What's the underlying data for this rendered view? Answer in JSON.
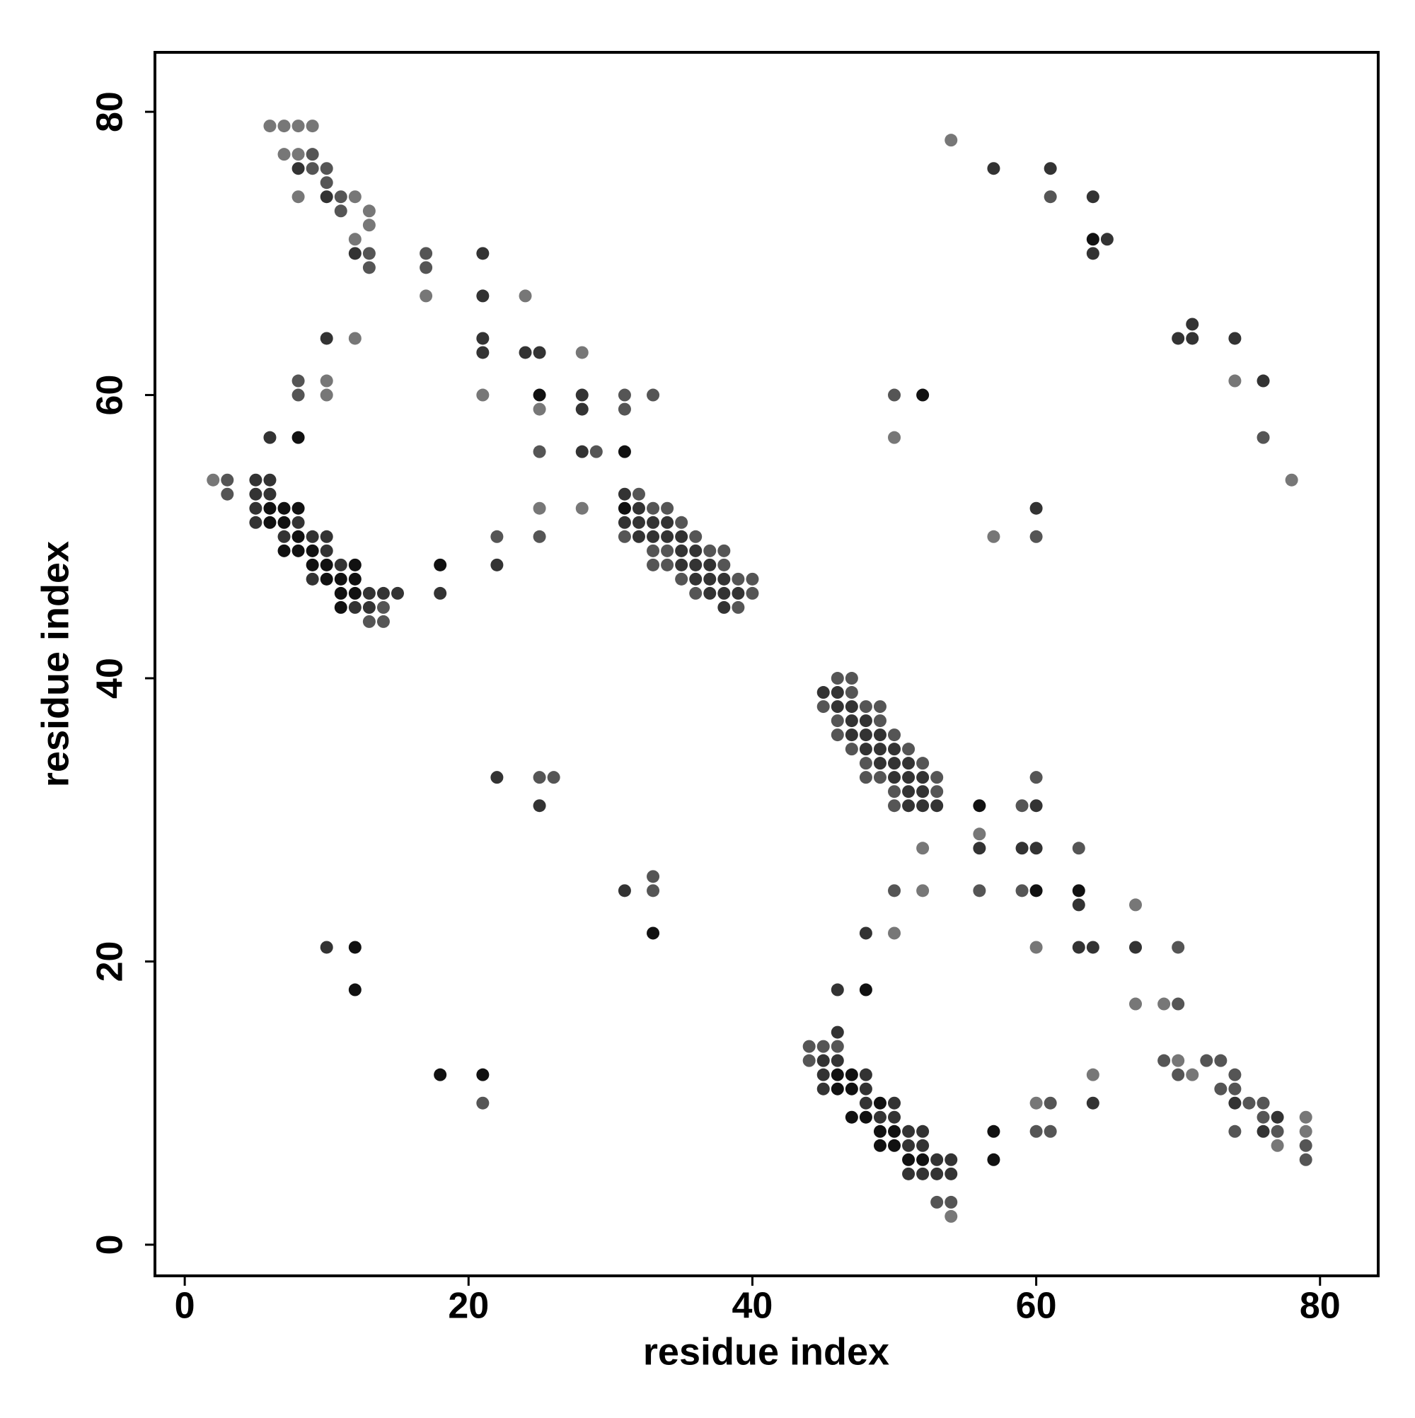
{
  "chart_data": {
    "type": "scatter",
    "xlabel": "residue index",
    "ylabel": "residue index",
    "xlim": [
      -2.1,
      84.1
    ],
    "ylim": [
      -2.2,
      84.2
    ],
    "xticks": [
      0,
      20,
      40,
      60,
      80
    ],
    "yticks": [
      0,
      20,
      40,
      60,
      80
    ],
    "grid": false,
    "series": [
      {
        "color": "#111111",
        "x": [
          25,
          52,
          8,
          31,
          18,
          64,
          56,
          60,
          63,
          33,
          12,
          12,
          48,
          18,
          21,
          57,
          57,
          31,
          6,
          7,
          8,
          6,
          7,
          8,
          7,
          8,
          9,
          9,
          10,
          12,
          10,
          11,
          12,
          11,
          12,
          11,
          46,
          47,
          46,
          47,
          49,
          47,
          48,
          49,
          50,
          49,
          50,
          51,
          52
        ],
        "values": [
          60,
          60,
          57,
          56,
          48,
          71,
          31,
          25,
          25,
          22,
          21,
          18,
          18,
          12,
          12,
          8,
          6,
          52,
          52,
          52,
          52,
          51,
          51,
          50,
          49,
          49,
          49,
          48,
          48,
          48,
          47,
          47,
          47,
          46,
          46,
          45,
          12,
          12,
          11,
          11,
          10,
          9,
          9,
          8,
          8,
          7,
          7,
          6,
          6
        ]
      },
      {
        "color": "#333333",
        "x": [
          8,
          10,
          12,
          21,
          21,
          10,
          21,
          21,
          24,
          25,
          28,
          28,
          28,
          6,
          5,
          6,
          5,
          6,
          22,
          18,
          57,
          61,
          64,
          65,
          64,
          71,
          70,
          71,
          74,
          76,
          60,
          22,
          25,
          60,
          56,
          59,
          60,
          31,
          63,
          48,
          10,
          63,
          64,
          67,
          46,
          46,
          64,
          74,
          77,
          76,
          5,
          5,
          8,
          7,
          9,
          10,
          10,
          11,
          9,
          13,
          14,
          15,
          12,
          13,
          31,
          32,
          31,
          32,
          33,
          34,
          32,
          33,
          34,
          35,
          35,
          36,
          35,
          36,
          37,
          36,
          37,
          38,
          37,
          38,
          39,
          38,
          45,
          46,
          46,
          47,
          47,
          48,
          47,
          48,
          49,
          48,
          49,
          50,
          49,
          50,
          51,
          50,
          51,
          52,
          51,
          52,
          51,
          52,
          53,
          45,
          46,
          45,
          48,
          45,
          48,
          48,
          50,
          49,
          50,
          51,
          52,
          51,
          52,
          53,
          54,
          51,
          52,
          53,
          54
        ],
        "values": [
          76,
          74,
          70,
          70,
          67,
          64,
          64,
          63,
          63,
          63,
          60,
          59,
          56,
          57,
          54,
          54,
          53,
          53,
          48,
          46,
          76,
          76,
          74,
          71,
          70,
          65,
          64,
          64,
          64,
          61,
          52,
          33,
          31,
          31,
          28,
          28,
          28,
          25,
          24,
          22,
          21,
          21,
          21,
          21,
          18,
          15,
          10,
          10,
          9,
          8,
          52,
          51,
          51,
          50,
          50,
          50,
          49,
          48,
          47,
          46,
          46,
          46,
          45,
          45,
          53,
          52,
          51,
          51,
          51,
          51,
          50,
          50,
          50,
          50,
          49,
          49,
          48,
          48,
          48,
          47,
          47,
          47,
          46,
          46,
          46,
          45,
          39,
          39,
          38,
          38,
          37,
          37,
          36,
          36,
          36,
          35,
          35,
          35,
          34,
          34,
          34,
          33,
          33,
          33,
          32,
          32,
          31,
          31,
          31,
          13,
          13,
          12,
          12,
          11,
          11,
          10,
          10,
          9,
          9,
          8,
          8,
          7,
          7,
          6,
          6,
          5,
          5,
          5,
          5
        ]
      },
      {
        "color": "#555555",
        "x": [
          9,
          9,
          10,
          10,
          11,
          11,
          13,
          17,
          13,
          17,
          8,
          8,
          31,
          33,
          31,
          25,
          29,
          3,
          3,
          22,
          25,
          61,
          50,
          76,
          60,
          33,
          33,
          50,
          56,
          59,
          63,
          59,
          60,
          25,
          26,
          70,
          70,
          69,
          72,
          73,
          70,
          74,
          73,
          74,
          21,
          61,
          75,
          76,
          76,
          60,
          61,
          74,
          77,
          79,
          79,
          53,
          54,
          44,
          45,
          46,
          44,
          14,
          13,
          14,
          32,
          33,
          34,
          35,
          31,
          36,
          33,
          34,
          37,
          38,
          33,
          34,
          38,
          35,
          39,
          40,
          36,
          40,
          39,
          46,
          47,
          47,
          45,
          48,
          49,
          46,
          49,
          46,
          50,
          47,
          51,
          48,
          52,
          48,
          49,
          53,
          50,
          53,
          50
        ],
        "values": [
          77,
          76,
          76,
          75,
          74,
          73,
          70,
          70,
          69,
          69,
          61,
          60,
          60,
          60,
          59,
          56,
          56,
          54,
          53,
          50,
          50,
          74,
          60,
          57,
          50,
          26,
          25,
          25,
          25,
          25,
          28,
          31,
          33,
          33,
          33,
          21,
          17,
          13,
          13,
          13,
          12,
          12,
          11,
          11,
          10,
          10,
          10,
          10,
          9,
          8,
          8,
          8,
          8,
          7,
          6,
          3,
          3,
          14,
          14,
          14,
          13,
          45,
          44,
          44,
          53,
          52,
          52,
          51,
          50,
          50,
          49,
          49,
          49,
          49,
          48,
          48,
          48,
          47,
          47,
          47,
          46,
          46,
          45,
          40,
          40,
          39,
          38,
          38,
          38,
          37,
          37,
          36,
          36,
          35,
          35,
          34,
          34,
          33,
          33,
          33,
          32,
          32,
          31
        ]
      },
      {
        "color": "#777777",
        "x": [
          6,
          7,
          8,
          9,
          7,
          8,
          8,
          12,
          13,
          13,
          12,
          17,
          24,
          12,
          10,
          10,
          21,
          25,
          25,
          28,
          54,
          50,
          78,
          57,
          56,
          52,
          52,
          67,
          50,
          60,
          67,
          69,
          70,
          64,
          71,
          60,
          79,
          79,
          77,
          54,
          2,
          28,
          74
        ],
        "values": [
          79,
          79,
          79,
          79,
          77,
          77,
          74,
          74,
          73,
          72,
          71,
          67,
          67,
          64,
          61,
          60,
          60,
          59,
          52,
          52,
          78,
          57,
          54,
          50,
          29,
          28,
          25,
          24,
          22,
          21,
          17,
          17,
          13,
          12,
          12,
          10,
          9,
          8,
          7,
          2,
          54,
          63,
          61
        ]
      }
    ]
  }
}
